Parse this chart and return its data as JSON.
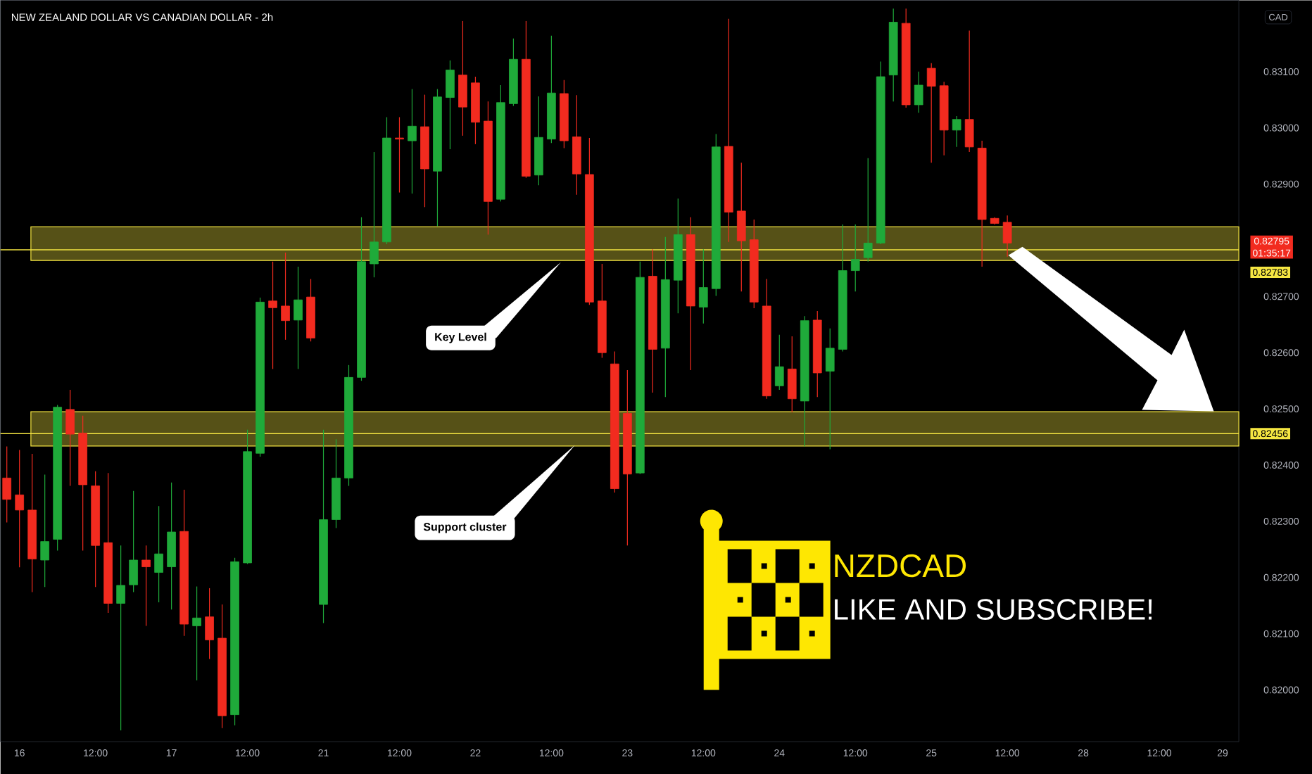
{
  "chart_data": {
    "type": "candlestick",
    "title": "NEW ZEALAND DOLLAR VS CANADIAN DOLLAR - 2h",
    "categories": [
      null,
      "16",
      null,
      null,
      null,
      null,
      null,
      "12:00",
      null,
      null,
      null,
      null,
      null,
      "17",
      null,
      null,
      null,
      null,
      null,
      "12:00",
      null,
      null,
      null,
      null,
      null,
      "21",
      null,
      null,
      null,
      null,
      null,
      "12:00",
      null,
      null,
      null,
      null,
      null,
      "22",
      null,
      null,
      null,
      null,
      null,
      "12:00",
      null,
      null,
      null,
      null,
      null,
      "23",
      null,
      null,
      null,
      null,
      null,
      "12:00",
      null,
      null,
      null,
      null,
      null,
      "24",
      null,
      null,
      null,
      null,
      null,
      "12:00",
      null,
      null,
      null,
      null,
      null,
      "25",
      null,
      null,
      null,
      null,
      null,
      "12:00",
      null,
      null,
      null,
      null,
      null,
      "28",
      null,
      null,
      null,
      null,
      null,
      "12:00",
      null,
      null,
      null,
      null,
      "29"
    ],
    "ohlc": [
      [
        0.82377,
        0.82433,
        0.82298,
        0.82339
      ],
      [
        0.82347,
        0.82427,
        0.82218,
        0.8232
      ],
      [
        0.8232,
        0.8242,
        0.82174,
        0.82233
      ],
      [
        0.82231,
        0.82383,
        0.82183,
        0.82264
      ],
      [
        0.82268,
        0.82507,
        0.82248,
        0.82503
      ],
      [
        0.82499,
        0.82534,
        0.82363,
        0.82455
      ],
      [
        0.82457,
        0.82488,
        0.82248,
        0.82365
      ],
      [
        0.82363,
        0.82389,
        0.82183,
        0.82257
      ],
      [
        0.82262,
        0.82386,
        0.82137,
        0.82154
      ],
      [
        0.82154,
        0.82257,
        0.81928,
        0.82186
      ],
      [
        0.82187,
        0.82354,
        0.82174,
        0.82231
      ],
      [
        0.82231,
        0.82257,
        0.82114,
        0.82219
      ],
      [
        0.82209,
        0.82327,
        0.82156,
        0.82242
      ],
      [
        0.82219,
        0.82369,
        0.82143,
        0.82281
      ],
      [
        0.82282,
        0.82356,
        0.82096,
        0.82117
      ],
      [
        0.82114,
        0.82184,
        0.82017,
        0.82128
      ],
      [
        0.8213,
        0.82181,
        0.82055,
        0.82089
      ],
      [
        0.82092,
        0.82152,
        0.81932,
        0.81954
      ],
      [
        0.81956,
        0.82235,
        0.81937,
        0.82228
      ],
      [
        0.82226,
        0.82463,
        0.82224,
        0.82424
      ],
      [
        0.82421,
        0.82698,
        0.82415,
        0.8269
      ],
      [
        0.82692,
        0.82762,
        0.82571,
        0.8268
      ],
      [
        0.82683,
        0.82778,
        0.82623,
        0.82657
      ],
      [
        0.82658,
        0.82753,
        0.82571,
        0.82694
      ],
      [
        0.82699,
        0.82731,
        0.8262,
        0.82626
      ],
      [
        0.82152,
        0.82463,
        0.82119,
        0.82303
      ],
      [
        0.82303,
        0.82446,
        0.82288,
        0.82377
      ],
      [
        0.82377,
        0.82578,
        0.82363,
        0.82556
      ],
      [
        0.82556,
        0.82841,
        0.8255,
        0.82762
      ],
      [
        0.82758,
        0.82957,
        0.82734,
        0.82797
      ],
      [
        0.82797,
        0.83019,
        0.82793,
        0.82982
      ],
      [
        0.82982,
        0.83019,
        0.82885,
        0.8298
      ],
      [
        0.82977,
        0.83069,
        0.82883,
        0.83003
      ],
      [
        0.83002,
        0.83059,
        0.82859,
        0.82927
      ],
      [
        0.82923,
        0.83069,
        0.82825,
        0.83055
      ],
      [
        0.83054,
        0.8312,
        0.82962,
        0.83103
      ],
      [
        0.83094,
        0.8319,
        0.82986,
        0.83037
      ],
      [
        0.8308,
        0.83091,
        0.82971,
        0.8301
      ],
      [
        0.83012,
        0.83047,
        0.8281,
        0.82869
      ],
      [
        0.82873,
        0.83076,
        0.82869,
        0.83045
      ],
      [
        0.83043,
        0.83159,
        0.83039,
        0.83122
      ],
      [
        0.83122,
        0.8319,
        0.82911,
        0.82914
      ],
      [
        0.82916,
        0.83056,
        0.82898,
        0.82983
      ],
      [
        0.8298,
        0.83164,
        0.82973,
        0.83062
      ],
      [
        0.83061,
        0.83085,
        0.82964,
        0.82977
      ],
      [
        0.82984,
        0.83058,
        0.82881,
        0.82918
      ],
      [
        0.82917,
        0.82982,
        0.82685,
        0.8269
      ],
      [
        0.82692,
        0.82758,
        0.82591,
        0.826
      ],
      [
        0.8258,
        0.82602,
        0.82351,
        0.82358
      ],
      [
        0.82492,
        0.82569,
        0.82257,
        0.82384
      ],
      [
        0.82386,
        0.82762,
        0.82384,
        0.82734
      ],
      [
        0.82736,
        0.82784,
        0.82529,
        0.82606
      ],
      [
        0.82608,
        0.82806,
        0.82521,
        0.8273
      ],
      [
        0.82729,
        0.82874,
        0.8267,
        0.8281
      ],
      [
        0.8281,
        0.82841,
        0.82569,
        0.82683
      ],
      [
        0.82681,
        0.82784,
        0.82652,
        0.82716
      ],
      [
        0.82714,
        0.82989,
        0.82701,
        0.82966
      ],
      [
        0.82967,
        0.83194,
        0.82797,
        0.8285
      ],
      [
        0.82852,
        0.82938,
        0.82709,
        0.82799
      ],
      [
        0.82801,
        0.82837,
        0.82679,
        0.8269
      ],
      [
        0.82683,
        0.82731,
        0.82518,
        0.82523
      ],
      [
        0.82541,
        0.82632,
        0.82534,
        0.82575
      ],
      [
        0.82571,
        0.82629,
        0.82494,
        0.82518
      ],
      [
        0.82514,
        0.82665,
        0.82433,
        0.82657
      ],
      [
        0.82658,
        0.82674,
        0.82521,
        0.82564
      ],
      [
        0.82567,
        0.82643,
        0.82428,
        0.82608
      ],
      [
        0.82606,
        0.82828,
        0.82602,
        0.82746
      ],
      [
        0.82746,
        0.82828,
        0.82709,
        0.82766
      ],
      [
        0.82769,
        0.82946,
        0.82762,
        0.82795
      ],
      [
        0.82795,
        0.83118,
        0.82793,
        0.83091
      ],
      [
        0.83094,
        0.83212,
        0.83047,
        0.83188
      ],
      [
        0.83186,
        0.83212,
        0.83036,
        0.83041
      ],
      [
        0.83041,
        0.831,
        0.83027,
        0.83076
      ],
      [
        0.83106,
        0.83115,
        0.82938,
        0.83074
      ],
      [
        0.83075,
        0.83082,
        0.82951,
        0.82996
      ],
      [
        0.82996,
        0.83021,
        0.82966,
        0.83015
      ],
      [
        0.83015,
        0.83173,
        0.82957,
        0.82966
      ],
      [
        0.82964,
        0.82977,
        0.82753,
        0.82837
      ],
      [
        0.82839,
        0.82841,
        0.82828,
        0.8283
      ],
      [
        0.82832,
        0.82844,
        0.82771,
        0.82795
      ],
      null,
      null,
      null,
      null,
      null,
      null,
      null,
      null,
      null,
      null,
      null,
      null,
      null,
      null,
      null,
      null,
      null
    ],
    "ylim": [
      0.81908,
      0.83227
    ],
    "yticks": [
      {
        "value": 0.82,
        "label": "0.82000"
      },
      {
        "value": 0.821,
        "label": "0.82100"
      },
      {
        "value": 0.822,
        "label": "0.82200"
      },
      {
        "value": 0.823,
        "label": "0.82300"
      },
      {
        "value": 0.824,
        "label": "0.82400"
      },
      {
        "value": 0.825,
        "label": "0.82500"
      },
      {
        "value": 0.826,
        "label": "0.82600"
      },
      {
        "value": 0.827,
        "label": "0.82700"
      },
      {
        "value": 0.829,
        "label": "0.82900"
      },
      {
        "value": 0.83,
        "label": "0.83000"
      },
      {
        "value": 0.831,
        "label": "0.83100"
      }
    ],
    "bands": [
      {
        "axis": "y",
        "from": 0.82764,
        "to": 0.82824,
        "color": "#f5e642"
      },
      {
        "axis": "y",
        "from": 0.82434,
        "to": 0.82495,
        "color": "#f5e642"
      }
    ],
    "ref_lines": [
      {
        "axis": "y",
        "value": 0.82783,
        "label": "0.82783",
        "color": "#f5e642"
      },
      {
        "axis": "y",
        "value": 0.82456,
        "label": "0.82456",
        "color": "#f5e642"
      }
    ],
    "annotations": [
      "Key Level",
      "Support cluster",
      "NZDCAD",
      "LIKE AND SUBSCRIBE!",
      "01:35:17",
      "CAD",
      "0.82795"
    ]
  }
}
